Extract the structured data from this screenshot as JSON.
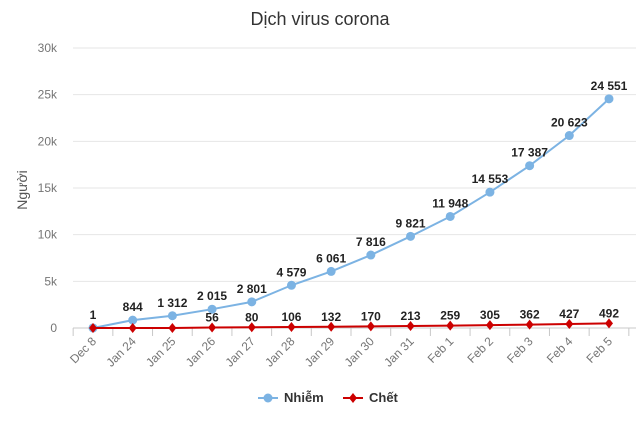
{
  "chart_data": {
    "type": "line",
    "title": "Dịch virus corona",
    "xlabel": "",
    "ylabel": "Người",
    "categories": [
      "Dec 8",
      "Jan 24",
      "Jan 25",
      "Jan 26",
      "Jan 27",
      "Jan 28",
      "Jan 29",
      "Jan 30",
      "Jan 31",
      "Feb 1",
      "Feb 2",
      "Feb 3",
      "Feb 4",
      "Feb 5"
    ],
    "ylim": [
      0,
      30000
    ],
    "yticks": [
      0,
      5000,
      10000,
      15000,
      20000,
      25000,
      30000
    ],
    "ytick_labels": [
      "0",
      "5k",
      "10k",
      "15k",
      "20k",
      "25k",
      "30k"
    ],
    "grid": true,
    "legend": "bottom",
    "series": [
      {
        "name": "Nhiễm",
        "color": "#7cb3e3",
        "marker": "circle",
        "values": [
          1,
          844,
          1312,
          2015,
          2801,
          4579,
          6061,
          7816,
          9821,
          11948,
          14553,
          17387,
          20623,
          24551
        ],
        "labels": [
          "1",
          "844",
          "1 312",
          "2 015",
          "2 801",
          "4 579",
          "6 061",
          "7 816",
          "9 821",
          "11 948",
          "14 553",
          "17 387",
          "20 623",
          "24 551"
        ]
      },
      {
        "name": "Chết",
        "color": "#cc0000",
        "marker": "diamond",
        "values": [
          null,
          null,
          null,
          56,
          80,
          106,
          132,
          170,
          213,
          259,
          305,
          362,
          427,
          492
        ],
        "labels": [
          null,
          null,
          null,
          "56",
          "80",
          "106",
          "132",
          "170",
          "213",
          "259",
          "305",
          "362",
          "427",
          "492"
        ]
      }
    ]
  }
}
